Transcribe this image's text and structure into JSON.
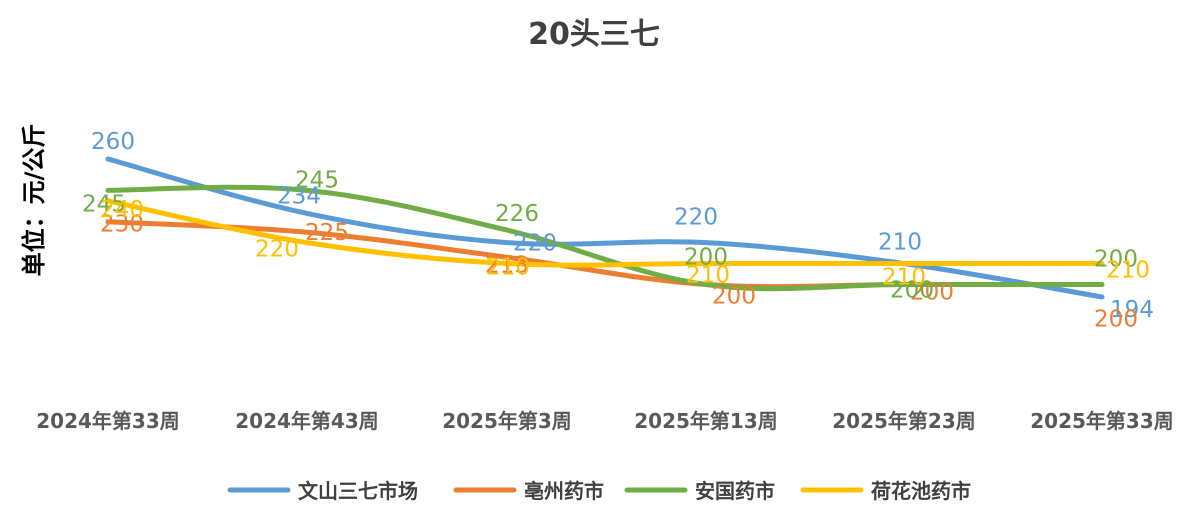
{
  "chart_data": {
    "type": "line",
    "title": "20头三七",
    "ylabel": "单位：元/公斤",
    "xlabel": "",
    "categories": [
      "2024年第33周",
      "2024年第43周",
      "2025年第3周",
      "2025年第13周",
      "2025年第23周",
      "2025年第33周"
    ],
    "ylim": [
      150,
      280
    ],
    "smooth": true,
    "grid": false,
    "legend_position": "bottom",
    "series": [
      {
        "name": "文山三七市场",
        "color": "#5B9BD5",
        "values": [
          260,
          234,
          220,
          220,
          210,
          194
        ]
      },
      {
        "name": "亳州药市",
        "color": "#ED7D31",
        "values": [
          230,
          225,
          213,
          200,
          200,
          200
        ]
      },
      {
        "name": "安国药市",
        "color": "#70AD47",
        "values": [
          245,
          245,
          226,
          200,
          200,
          200
        ]
      },
      {
        "name": "荷花池药市",
        "color": "#FFC000",
        "values": [
          240,
          220,
          210,
          210,
          210,
          210
        ]
      }
    ]
  }
}
